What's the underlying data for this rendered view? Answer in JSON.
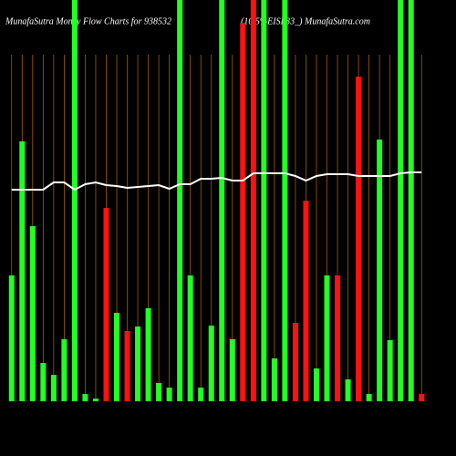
{
  "chart_data": {
    "type": "bar",
    "title": "MunafaSutra  Money  Flow  Charts for 938532",
    "subtitle": "(10.5%EISL33_) MunafaSutra.com",
    "categories": [
      null,
      null,
      null,
      null,
      null,
      null,
      null,
      null,
      null,
      null,
      null,
      null,
      null,
      null,
      null,
      null,
      null,
      null,
      null,
      null,
      null,
      null,
      null,
      null,
      null,
      null,
      null,
      null,
      null,
      null,
      null,
      null,
      null,
      null,
      null,
      null,
      null,
      null,
      null,
      null
    ],
    "values": [
      138,
      285,
      192,
      42,
      29,
      68,
      440,
      8,
      3,
      212,
      97,
      77,
      82,
      102,
      20,
      15,
      440,
      138,
      15,
      83,
      440,
      68,
      415,
      440,
      440,
      47,
      440,
      86,
      220,
      36,
      138,
      138,
      24,
      356,
      8,
      287,
      67,
      440,
      440,
      8
    ],
    "colors": [
      "#22ff22",
      "#22ff22",
      "#22ff22",
      "#22ff22",
      "#22ff22",
      "#22ff22",
      "#22ff22",
      "#22ff22",
      "#22ff22",
      "#ff1111",
      "#22ff22",
      "#ff1111",
      "#22ff22",
      "#22ff22",
      "#22ff22",
      "#22ff22",
      "#22ff22",
      "#22ff22",
      "#22ff22",
      "#22ff22",
      "#22ff22",
      "#22ff22",
      "#ff1111",
      "#ff1111",
      "#22ff22",
      "#22ff22",
      "#22ff22",
      "#ff1111",
      "#ff1111",
      "#22ff22",
      "#22ff22",
      "#ff1111",
      "#22ff22",
      "#ff1111",
      "#22ff22",
      "#22ff22",
      "#22ff22",
      "#22ff22",
      "#22ff22",
      "#ff1111"
    ],
    "line": {
      "color": "#ffffff",
      "values": [
        232,
        232,
        232,
        232,
        240,
        240,
        232,
        238,
        240,
        237,
        236,
        234,
        235,
        236,
        237,
        233,
        238,
        238,
        244,
        244,
        245,
        242,
        242,
        250,
        250,
        250,
        250,
        247,
        242,
        247,
        249,
        249,
        249,
        247,
        247,
        247,
        247,
        250,
        251,
        251
      ]
    },
    "grid_color": "#b86a00",
    "ylim": [
      0,
      440
    ]
  }
}
